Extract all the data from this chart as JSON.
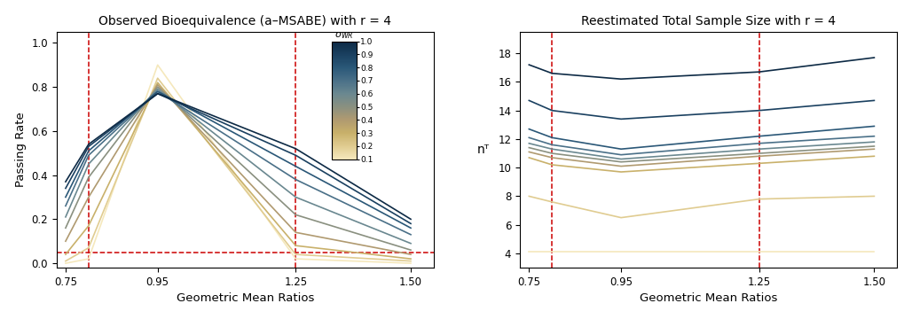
{
  "title_left": "Observed Bioequivalence (a–MSABE) with r = 4",
  "title_right": "Reestimated Total Sample Size with r = 4",
  "xlabel": "Geometric Mean Ratios",
  "ylabel_left": "Passing Rate",
  "ylabel_right": "nᵀ",
  "gmr_x": [
    0.75,
    0.8,
    0.95,
    1.25,
    1.5
  ],
  "vline_x": [
    0.8,
    1.25
  ],
  "hline_y_left": 0.05,
  "xlim": [
    0.73,
    1.55
  ],
  "ylim_left": [
    -0.02,
    1.05
  ],
  "ylim_right": [
    3.0,
    19.5
  ],
  "yticks_left": [
    0.0,
    0.2,
    0.4,
    0.6,
    0.8,
    1.0
  ],
  "yticks_right": [
    4,
    6,
    8,
    10,
    12,
    14,
    16,
    18
  ],
  "xticks": [
    0.75,
    0.95,
    1.25,
    1.5
  ],
  "sigma_wr_values": [
    0.1,
    0.2,
    0.3,
    0.4,
    0.5,
    0.6,
    0.7,
    0.8,
    0.9,
    1.0
  ],
  "passing_rate_data": {
    "0.1": [
      0.0,
      0.02,
      0.9,
      0.02,
      0.0
    ],
    "0.2": [
      0.01,
      0.07,
      0.84,
      0.04,
      0.01
    ],
    "0.3": [
      0.04,
      0.17,
      0.82,
      0.08,
      0.02
    ],
    "0.4": [
      0.1,
      0.3,
      0.81,
      0.14,
      0.04
    ],
    "0.5": [
      0.16,
      0.39,
      0.8,
      0.22,
      0.06
    ],
    "0.6": [
      0.21,
      0.45,
      0.79,
      0.3,
      0.09
    ],
    "0.7": [
      0.26,
      0.49,
      0.78,
      0.38,
      0.13
    ],
    "0.8": [
      0.3,
      0.51,
      0.78,
      0.44,
      0.16
    ],
    "0.9": [
      0.34,
      0.53,
      0.77,
      0.49,
      0.18
    ],
    "1.0": [
      0.37,
      0.54,
      0.77,
      0.52,
      0.2
    ]
  },
  "sample_size_data": {
    "0.1": [
      4.1,
      4.1,
      4.1,
      4.1,
      4.1
    ],
    "0.2": [
      8.0,
      7.6,
      6.5,
      7.8,
      8.0
    ],
    "0.3": [
      10.7,
      10.2,
      9.7,
      10.3,
      10.8
    ],
    "0.4": [
      11.1,
      10.7,
      10.1,
      10.8,
      11.3
    ],
    "0.5": [
      11.4,
      11.0,
      10.4,
      11.0,
      11.5
    ],
    "0.6": [
      11.7,
      11.3,
      10.6,
      11.3,
      11.8
    ],
    "0.7": [
      12.1,
      11.6,
      10.9,
      11.7,
      12.2
    ],
    "0.8": [
      12.7,
      12.1,
      11.3,
      12.2,
      12.9
    ],
    "0.9": [
      14.7,
      14.0,
      13.4,
      14.0,
      14.7
    ],
    "1.0": [
      17.2,
      16.6,
      16.2,
      16.7,
      17.7
    ]
  },
  "legend_sigma_ticks": [
    0.1,
    0.2,
    0.3,
    0.4,
    0.5,
    0.6,
    0.7,
    0.8,
    0.9,
    1.0
  ],
  "colorbar_colors": [
    "#f5e8c0",
    "#e8d49a",
    "#c8b87a",
    "#a89870",
    "#8a9080",
    "#6a8898",
    "#4a7090",
    "#2a5878",
    "#1a4060",
    "#0a2840"
  ],
  "background_color": "#ffffff",
  "dashed_red": "#cc0000",
  "line_alpha": 1.0,
  "line_width": 1.2
}
